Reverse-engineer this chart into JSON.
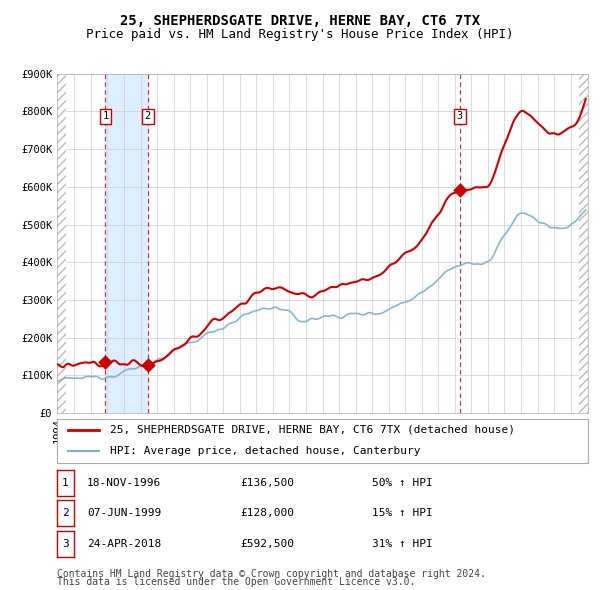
{
  "title1": "25, SHEPHERDSGATE DRIVE, HERNE BAY, CT6 7TX",
  "title2": "Price paid vs. HM Land Registry's House Price Index (HPI)",
  "ylim": [
    0,
    900000
  ],
  "yticks": [
    0,
    100000,
    200000,
    300000,
    400000,
    500000,
    600000,
    700000,
    800000,
    900000
  ],
  "ytick_labels": [
    "£0",
    "£100K",
    "£200K",
    "£300K",
    "£400K",
    "£500K",
    "£600K",
    "£700K",
    "£800K",
    "£900K"
  ],
  "year_start": 1994,
  "year_end": 2025,
  "transactions": [
    {
      "label": "1",
      "date": "18-NOV-1996",
      "year": 1996.88,
      "price": 136500,
      "pct": "50%",
      "dir": "↑"
    },
    {
      "label": "2",
      "date": "07-JUN-1999",
      "year": 1999.44,
      "price": 128000,
      "pct": "15%",
      "dir": "↑"
    },
    {
      "label": "3",
      "date": "24-APR-2018",
      "year": 2018.3,
      "price": 592500,
      "pct": "31%",
      "dir": "↑"
    }
  ],
  "legend_entries": [
    {
      "label": "25, SHEPHERDSGATE DRIVE, HERNE BAY, CT6 7TX (detached house)",
      "color": "#cc0000",
      "lw": 1.5
    },
    {
      "label": "HPI: Average price, detached house, Canterbury",
      "color": "#7aadcf",
      "lw": 1.2
    }
  ],
  "footnote1": "Contains HM Land Registry data © Crown copyright and database right 2024.",
  "footnote2": "This data is licensed under the Open Government Licence v3.0.",
  "grid_color": "#cccccc",
  "bg_color": "#ffffff",
  "highlight_color": "#ddeeff",
  "vline_color": "#cc0000",
  "title_fontsize": 10,
  "subtitle_fontsize": 9,
  "tick_fontsize": 7.5,
  "legend_fontsize": 8,
  "table_fontsize": 8,
  "footnote_fontsize": 7
}
